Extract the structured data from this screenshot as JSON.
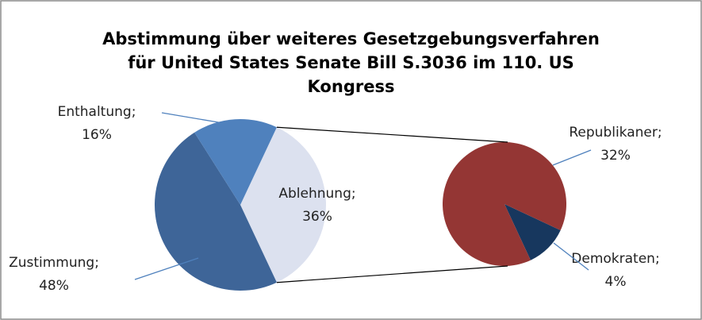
{
  "chart_data": {
    "type": "pie-of-pie",
    "title": "Abstimmung über weiteres Gesetzgebungsverfahren für United States Senate Bill S.3036 im 110. US Kongress",
    "label_separator": ";",
    "categories": [
      "Ablehnung",
      "Zustimmung",
      "Enthaltung"
    ],
    "values": [
      36,
      48,
      16
    ],
    "value_labels": [
      "36%",
      "48%",
      "16%"
    ],
    "colors": [
      "#dce1ef",
      "#3e6598",
      "#4f81bd"
    ],
    "split_category": 0,
    "secondary": {
      "categories": [
        "Demokraten",
        "Republikaner"
      ],
      "values": [
        4,
        32
      ],
      "value_labels": [
        "4%",
        "32%"
      ],
      "colors": [
        "#17375e",
        "#943634"
      ]
    }
  }
}
